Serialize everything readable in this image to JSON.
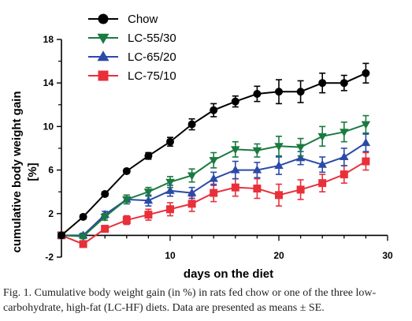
{
  "chart_data": {
    "type": "line",
    "xlabel": "days on the diet",
    "ylabel": "cumulative body weight gain\n[%]",
    "xlim": [
      0,
      30
    ],
    "ylim": [
      -2,
      18
    ],
    "x_ticks": [
      10,
      20,
      30
    ],
    "y_ticks": [
      -2,
      2,
      6,
      10,
      14,
      18
    ],
    "legend_position": "top-left",
    "error_bars": "SE",
    "x": [
      0,
      2,
      4,
      6,
      8,
      10,
      12,
      14,
      16,
      18,
      20,
      22,
      24,
      26,
      28
    ],
    "series": [
      {
        "name": "Chow",
        "color": "#000000",
        "marker": "circle",
        "values": [
          0,
          1.7,
          3.8,
          5.9,
          7.3,
          8.6,
          10.2,
          11.5,
          12.3,
          13.0,
          13.2,
          13.2,
          14.0,
          14.0,
          14.9
        ],
        "errors": [
          0,
          0.2,
          0.2,
          0.2,
          0.3,
          0.4,
          0.5,
          0.6,
          0.5,
          0.7,
          1.1,
          1.0,
          0.9,
          0.7,
          0.9
        ]
      },
      {
        "name": "LC-55/30",
        "color": "#1a7a40",
        "marker": "triangle-down",
        "values": [
          0,
          -0.1,
          1.7,
          3.3,
          4.0,
          4.9,
          5.5,
          6.9,
          7.9,
          7.8,
          8.2,
          8.1,
          9.1,
          9.5,
          10.2
        ],
        "errors": [
          0,
          0.2,
          0.3,
          0.4,
          0.4,
          0.5,
          0.6,
          0.7,
          0.7,
          0.6,
          0.9,
          0.8,
          0.9,
          0.9,
          0.8
        ]
      },
      {
        "name": "LC-65/20",
        "color": "#2b4aa8",
        "marker": "triangle-up",
        "values": [
          0,
          0,
          1.9,
          3.3,
          3.2,
          4.1,
          3.9,
          5.2,
          6.0,
          6.0,
          6.4,
          7.1,
          6.5,
          7.2,
          8.5
        ],
        "errors": [
          0,
          0.2,
          0.3,
          0.4,
          0.5,
          0.5,
          0.5,
          0.6,
          0.8,
          0.7,
          0.8,
          0.6,
          0.7,
          0.8,
          0.8
        ]
      },
      {
        "name": "LC-75/10",
        "color": "#e8303a",
        "marker": "square",
        "values": [
          0,
          -0.8,
          0.6,
          1.4,
          1.9,
          2.4,
          2.9,
          3.9,
          4.4,
          4.3,
          3.7,
          4.2,
          4.8,
          5.6,
          6.8
        ],
        "errors": [
          0,
          0.2,
          0.3,
          0.4,
          0.5,
          0.6,
          0.7,
          0.8,
          0.8,
          0.9,
          1.0,
          0.9,
          0.8,
          0.8,
          0.8
        ]
      }
    ]
  },
  "caption": "Fig. 1. Cumulative body weight gain (in %) in rats fed chow or one of the three low-carbohydrate, high-fat (LC-HF) diets. Data are presented as means ± SE."
}
